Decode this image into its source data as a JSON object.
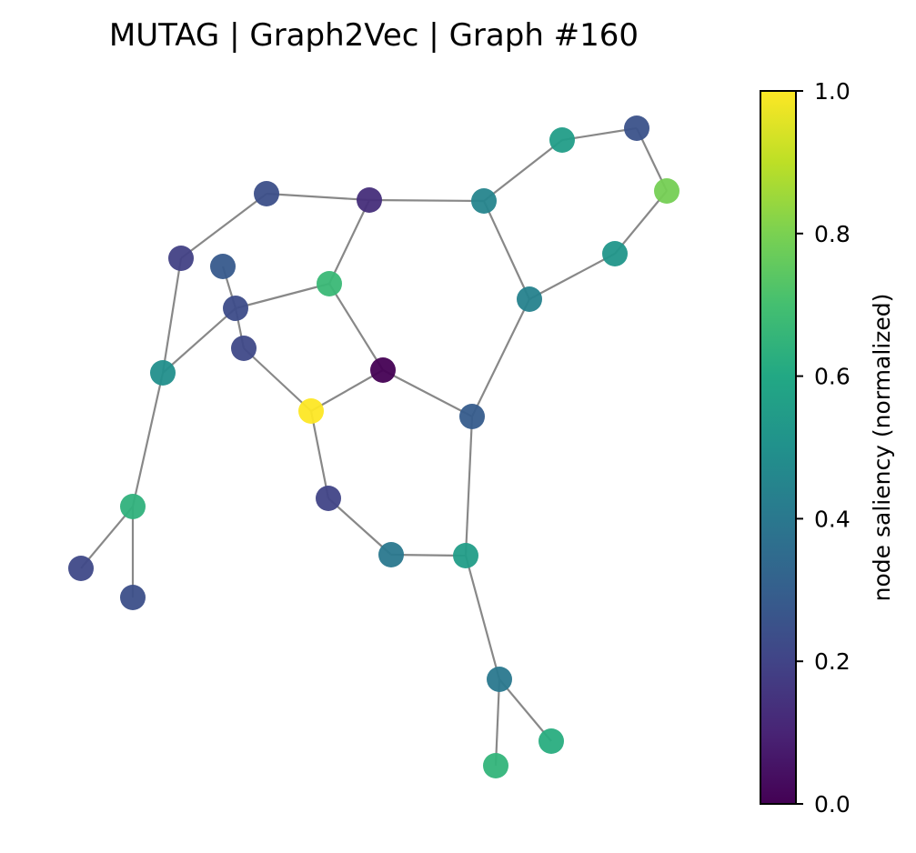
{
  "title": "MUTAG | Graph2Vec | Graph #160",
  "colorbar": {
    "label": "node saliency (normalized)",
    "min": 0.0,
    "max": 1.0,
    "colormap": "viridis",
    "ticks": [
      "0.0",
      "0.2",
      "0.4",
      "0.6",
      "0.8",
      "1.0"
    ]
  },
  "edge_color": "#888888",
  "chart_data": {
    "type": "scatter",
    "title": "MUTAG | Graph2Vec | Graph #160",
    "nodes": [
      {
        "id": 0,
        "saliency": 0.59
      },
      {
        "id": 1,
        "saliency": 0.23
      },
      {
        "id": 2,
        "saliency": 0.81
      },
      {
        "id": 3,
        "saliency": 0.5
      },
      {
        "id": 4,
        "saliency": 0.45
      },
      {
        "id": 5,
        "saliency": 0.43
      },
      {
        "id": 6,
        "saliency": 0.13
      },
      {
        "id": 7,
        "saliency": 0.2
      },
      {
        "id": 8,
        "saliency": 0.17
      },
      {
        "id": 9,
        "saliency": 0.67
      },
      {
        "id": 10,
        "saliency": 0.42
      },
      {
        "id": 11,
        "saliency": 0.27
      },
      {
        "id": 12,
        "saliency": 0.25
      },
      {
        "id": 13,
        "saliency": 0.21
      },
      {
        "id": 14,
        "saliency": 0.21
      },
      {
        "id": 15,
        "saliency": 0.0
      },
      {
        "id": 16,
        "saliency": 0.44
      },
      {
        "id": 17,
        "saliency": 1.0
      },
      {
        "id": 18,
        "saliency": 0.67
      },
      {
        "id": 19,
        "saliency": 0.19
      },
      {
        "id": 20,
        "saliency": 0.19
      },
      {
        "id": 21,
        "saliency": 0.37
      },
      {
        "id": 22,
        "saliency": 0.53
      },
      {
        "id": 23,
        "saliency": 0.37
      },
      {
        "id": 24,
        "saliency": 0.68
      },
      {
        "id": 25,
        "saliency": 0.6
      },
      {
        "id": 26,
        "saliency": 0.29
      }
    ],
    "edges": [
      [
        0,
        1
      ],
      [
        1,
        2
      ],
      [
        2,
        3
      ],
      [
        3,
        4
      ],
      [
        4,
        5
      ],
      [
        5,
        0
      ],
      [
        0,
        10
      ],
      [
        10,
        11
      ],
      [
        6,
        10
      ],
      [
        6,
        9
      ],
      [
        6,
        7
      ],
      [
        7,
        8
      ],
      [
        8,
        16
      ],
      [
        16,
        19
      ],
      [
        16,
        18
      ],
      [
        18,
        20
      ],
      [
        18,
        17
      ],
      [
        9,
        15
      ],
      [
        9,
        12
      ],
      [
        12,
        13
      ],
      [
        13,
        14
      ],
      [
        14,
        17
      ],
      [
        17,
        15
      ],
      [
        11,
        22
      ],
      [
        22,
        23
      ],
      [
        22,
        26
      ],
      [
        22,
        25
      ],
      [
        26,
        24
      ]
    ]
  }
}
